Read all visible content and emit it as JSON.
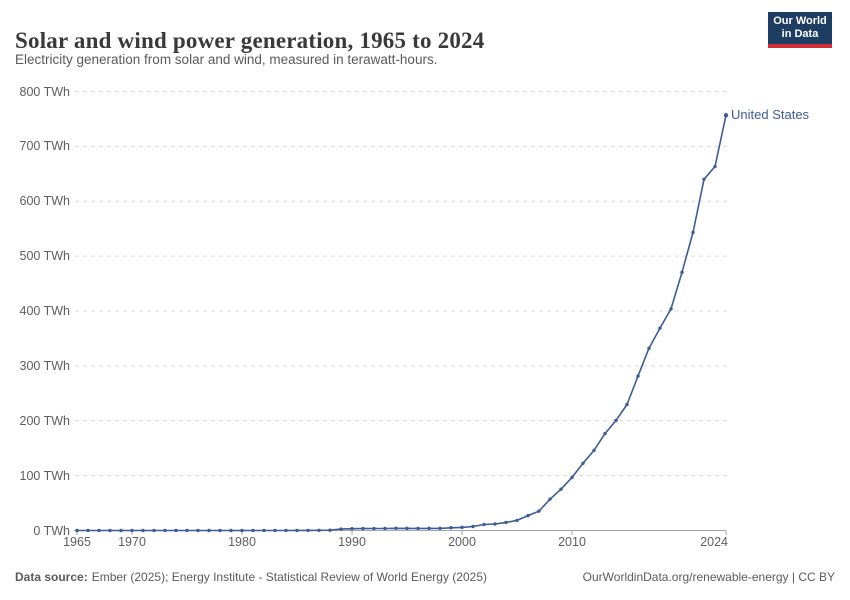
{
  "header": {
    "title": "Solar and wind power generation, 1965 to 2024",
    "subtitle": "Electricity generation from solar and wind, measured in terawatt-hours."
  },
  "logo": {
    "line1": "Our World",
    "line2": "in Data",
    "bg_color": "#1d3d63",
    "stripe_color": "#cf2e38"
  },
  "footer": {
    "source_label": "Data source:",
    "source_text": "Ember (2025); Energy Institute - Statistical Review of World Energy (2025)",
    "credit": "OurWorldinData.org/renewable-energy | CC BY"
  },
  "chart_data": {
    "type": "line",
    "title": "Solar and wind power generation, 1965 to 2024",
    "subtitle": "Electricity generation from solar and wind, measured in terawatt-hours.",
    "unit": "TWh",
    "xlabel": "",
    "ylabel": "",
    "xlim": [
      1965,
      2024
    ],
    "ylim": [
      0,
      800
    ],
    "grid": "horizontal-dashed",
    "grid_color": "#d8d8d8",
    "axis_color": "#a5a5a5",
    "tick_label_color": "#5e5e5e",
    "legend_position": "end-of-line-label",
    "y_ticks": [
      0,
      100,
      200,
      300,
      400,
      500,
      600,
      700,
      800
    ],
    "x_ticks": [
      {
        "year": 1965
      },
      {
        "year": 1970
      },
      {
        "year": 1980
      },
      {
        "year": 1990
      },
      {
        "year": 2000
      },
      {
        "year": 2010
      },
      {
        "year": 2024,
        "align": "right"
      }
    ],
    "x": [
      1965,
      1966,
      1967,
      1968,
      1969,
      1970,
      1971,
      1972,
      1973,
      1974,
      1975,
      1976,
      1977,
      1978,
      1979,
      1980,
      1981,
      1982,
      1983,
      1984,
      1985,
      1986,
      1987,
      1988,
      1989,
      1990,
      1991,
      1992,
      1993,
      1994,
      1995,
      1996,
      1997,
      1998,
      1999,
      2000,
      2001,
      2002,
      2003,
      2004,
      2005,
      2006,
      2007,
      2008,
      2009,
      2010,
      2011,
      2012,
      2013,
      2014,
      2015,
      2016,
      2017,
      2018,
      2019,
      2020,
      2021,
      2022,
      2023,
      2024
    ],
    "series": [
      {
        "name": "United States",
        "color": "#3d5c96",
        "values": [
          0,
          0,
          0,
          0,
          0,
          0,
          0,
          0,
          0,
          0,
          0,
          0,
          0,
          0,
          0,
          0,
          0,
          0,
          0.03,
          0.07,
          0.1,
          0.15,
          0.35,
          0.5,
          2.6,
          3.2,
          3.4,
          3.6,
          3.7,
          4.1,
          3.9,
          3.8,
          3.9,
          3.9,
          5.0,
          5.7,
          7.3,
          10.9,
          11.9,
          14.7,
          18.4,
          27.1,
          35.3,
          57.1,
          75.3,
          96.7,
          122.5,
          145.9,
          176.6,
          200.5,
          229.7,
          281.4,
          332.2,
          368.8,
          403.8,
          470.5,
          543.1,
          640.0,
          663.3,
          756.7
        ]
      }
    ]
  }
}
